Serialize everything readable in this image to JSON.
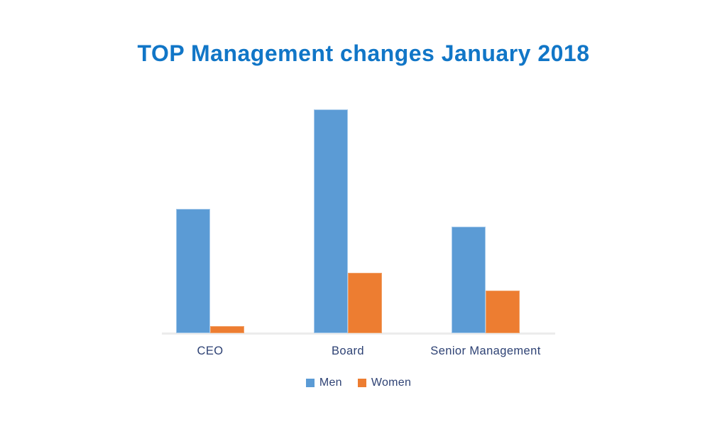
{
  "chart_data": {
    "type": "bar",
    "title": "TOP Management changes January 2018",
    "categories": [
      "CEO",
      "Board",
      "Senior Management"
    ],
    "series": [
      {
        "name": "Men",
        "color": "#5B9BD5",
        "values": [
          35,
          63,
          30
        ]
      },
      {
        "name": "Women",
        "color": "#ED7D31",
        "values": [
          2,
          17,
          12
        ]
      }
    ],
    "ylim": [
      0,
      70
    ],
    "xlabel": "",
    "ylabel": "",
    "y_axis_visible": false,
    "gridlines": false,
    "legend_position": "bottom",
    "title_color": "#1176C7",
    "label_color": "#2E4274",
    "axis_line_color": "#ECECEC",
    "background": "#FFFFFF"
  }
}
